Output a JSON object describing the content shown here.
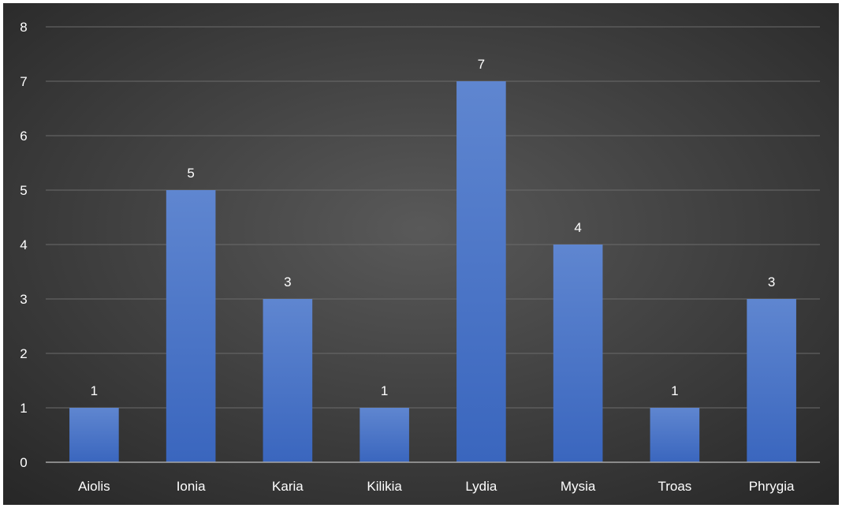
{
  "chart_data": {
    "type": "bar",
    "categories": [
      "Aiolis",
      "Ionia",
      "Karia",
      "Kilikia",
      "Lydia",
      "Mysia",
      "Troas",
      "Phrygia"
    ],
    "values": [
      1,
      5,
      3,
      1,
      7,
      4,
      1,
      3
    ],
    "title": "",
    "xlabel": "",
    "ylabel": "",
    "ylim": [
      0,
      8
    ],
    "yticks": [
      "0",
      "1",
      "2",
      "3",
      "4",
      "5",
      "6",
      "7",
      "8"
    ],
    "grid": true,
    "legend": "none",
    "data_labels": true,
    "colors": {
      "bar": "#4472C4",
      "bar_top": "#5F86D0",
      "bar_bottom": "#3A66BE",
      "background_center": "#595959",
      "background_edge": "#262626",
      "text": "#ffffff",
      "gridline": "#6B6B6B",
      "axis": "#A6A6A6"
    }
  }
}
